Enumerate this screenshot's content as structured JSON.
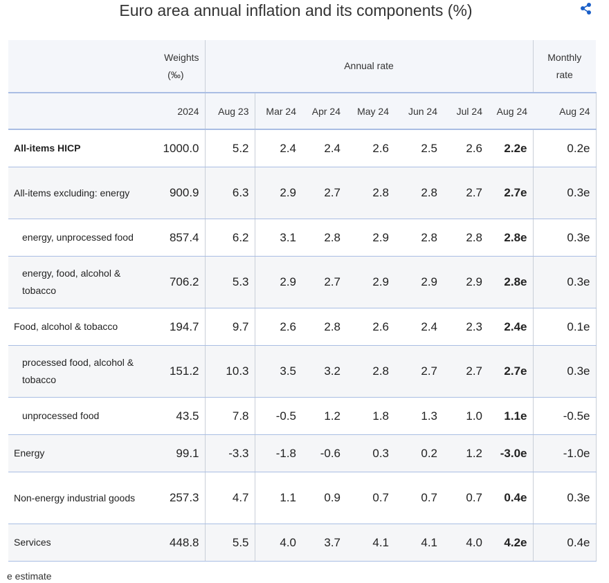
{
  "title": "Euro area annual inflation and its components (%)",
  "header": {
    "weights": "Weights",
    "weights_unit": "(‰)",
    "annual": "Annual rate",
    "monthly": "Monthly",
    "monthly_unit": "rate",
    "columns": [
      "2024",
      "Aug 23",
      "Mar 24",
      "Apr 24",
      "May 24",
      "Jun 24",
      "Jul 24",
      "Aug 24",
      "Aug 24"
    ]
  },
  "rows": [
    {
      "label": "All-items HICP",
      "cells": [
        "1000.0",
        "5.2",
        "2.4",
        "2.4",
        "2.6",
        "2.5",
        "2.6",
        "2.2e",
        "0.2e"
      ]
    },
    {
      "label": "All-items excluding: energy",
      "cells": [
        "900.9",
        "6.3",
        "2.9",
        "2.7",
        "2.8",
        "2.8",
        "2.7",
        "2.7e",
        "0.3e"
      ]
    },
    {
      "label": "energy, unprocessed food",
      "cells": [
        "857.4",
        "6.2",
        "3.1",
        "2.8",
        "2.9",
        "2.8",
        "2.8",
        "2.8e",
        "0.3e"
      ]
    },
    {
      "label": "energy, food, alcohol & tobacco",
      "cells": [
        "706.2",
        "5.3",
        "2.9",
        "2.7",
        "2.9",
        "2.9",
        "2.9",
        "2.8e",
        "0.3e"
      ]
    },
    {
      "label": "Food, alcohol & tobacco",
      "cells": [
        "194.7",
        "9.7",
        "2.6",
        "2.8",
        "2.6",
        "2.4",
        "2.3",
        "2.4e",
        "0.1e"
      ]
    },
    {
      "label": "processed food, alcohol & tobacco",
      "cells": [
        "151.2",
        "10.3",
        "3.5",
        "3.2",
        "2.8",
        "2.7",
        "2.7",
        "2.7e",
        "0.3e"
      ]
    },
    {
      "label": "unprocessed food",
      "cells": [
        "43.5",
        "7.8",
        "-0.5",
        "1.2",
        "1.8",
        "1.3",
        "1.0",
        "1.1e",
        "-0.5e"
      ]
    },
    {
      "label": "Energy",
      "cells": [
        "99.1",
        "-3.3",
        "-1.8",
        "-0.6",
        "0.3",
        "0.2",
        "1.2",
        "-3.0e",
        "-1.0e"
      ]
    },
    {
      "label": "Non-energy industrial goods",
      "cells": [
        "257.3",
        "4.7",
        "1.1",
        "0.9",
        "0.7",
        "0.7",
        "0.7",
        "0.4e",
        "0.3e"
      ]
    },
    {
      "label": "Services",
      "cells": [
        "448.8",
        "5.5",
        "4.0",
        "3.7",
        "4.1",
        "4.1",
        "4.0",
        "4.2e",
        "0.4e"
      ]
    }
  ],
  "footnote": "e estimate"
}
